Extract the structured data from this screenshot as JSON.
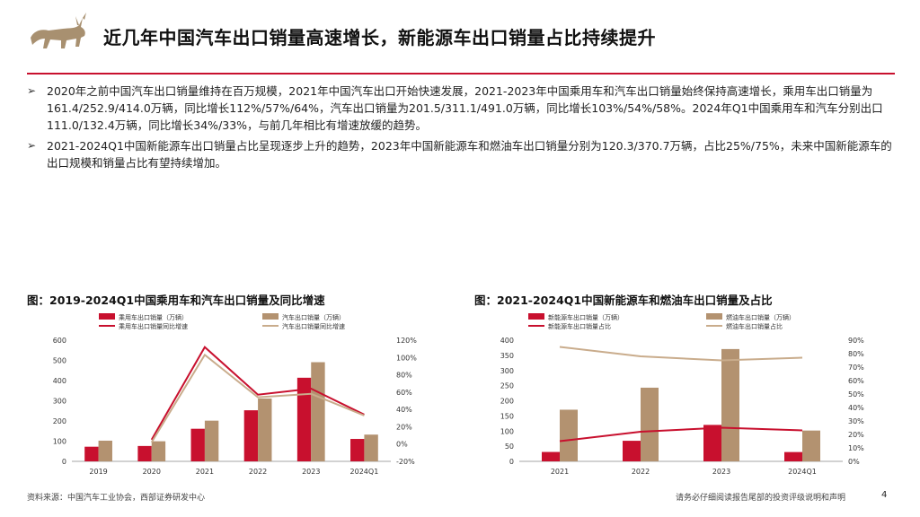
{
  "header": {
    "title": "近几年中国汽车出口销量高速增长，新能源车出口销量占比持续提升",
    "colors": {
      "accent": "#c8102e",
      "logo": "#a89070"
    }
  },
  "bullets": [
    {
      "icon": "arrow-bullet-icon",
      "text": "2020年之前中国汽车出口销量维持在百万规模，2021年中国汽车出口开始快速发展，2021-2023年中国乘用车和汽车出口销量始终保持高速增长，乘用车出口销量为161.4/252.9/414.0万辆，同比增长112%/57%/64%，汽车出口销量为201.5/311.1/491.0万辆，同比增长103%/54%/58%。2024年Q1中国乘用车和汽车分别出口111.0/132.4万辆，同比增长34%/33%，与前几年相比有增速放缓的趋势。"
    },
    {
      "icon": "arrow-bullet-icon",
      "text": "2021-2024Q1中国新能源车出口销量占比呈现逐步上升的趋势，2023年中国新能源车和燃油车出口销量分别为120.3/370.7万辆，占比25%/75%，未来中国新能源车的出口规模和销量占比有望持续增加。"
    }
  ],
  "figures": {
    "left_title": "图：2019-2024Q1中国乘用车和汽车出口销量及同比增速",
    "right_title": "图：2021-2024Q1中国新能源车和燃油车出口销量及占比"
  },
  "chart_data": [
    {
      "type": "bar",
      "title": "图：2019-2024Q1中国乘用车和汽车出口销量及同比增速",
      "categories": [
        "2019",
        "2020",
        "2021",
        "2022",
        "2023",
        "2024Q1"
      ],
      "series": [
        {
          "name": "乘用车出口销量（万辆）",
          "kind": "bar",
          "axis": "left",
          "color": "#c8102e",
          "values": [
            72.5,
            76.1,
            161.4,
            252.9,
            414.0,
            111.0
          ]
        },
        {
          "name": "汽车出口销量（万辆）",
          "kind": "bar",
          "axis": "left",
          "color": "#b39270",
          "values": [
            102.4,
            99.5,
            201.5,
            311.1,
            491.0,
            132.4
          ]
        },
        {
          "name": "乘用车出口销量同比增速",
          "kind": "line",
          "axis": "right",
          "color": "#c8102e",
          "values": [
            null,
            5,
            112,
            57,
            64,
            34
          ]
        },
        {
          "name": "汽车出口销量同比增速",
          "kind": "line",
          "axis": "right",
          "color": "#c9ac8c",
          "values": [
            null,
            2,
            103,
            54,
            58,
            33
          ]
        }
      ],
      "ylim": [
        0,
        600
      ],
      "yticks": [
        "0",
        "100",
        "200",
        "300",
        "400",
        "500",
        "600"
      ],
      "y2lim": [
        -20,
        120
      ],
      "y2ticks": [
        "-20%",
        "0%",
        "20%",
        "40%",
        "60%",
        "80%",
        "100%",
        "120%"
      ],
      "legend": "top"
    },
    {
      "type": "bar",
      "title": "图：2021-2024Q1中国新能源车和燃油车出口销量及占比",
      "categories": [
        "2021",
        "2022",
        "2023",
        "2024Q1"
      ],
      "series": [
        {
          "name": "新能源车出口销量（万辆）",
          "kind": "bar",
          "axis": "left",
          "color": "#c8102e",
          "values": [
            31.0,
            67.9,
            120.3,
            30.7
          ]
        },
        {
          "name": "燃油车出口销量（万辆）",
          "kind": "bar",
          "axis": "left",
          "color": "#b39270",
          "values": [
            170.5,
            243.2,
            370.7,
            101.7
          ]
        },
        {
          "name": "新能源车出口销量占比",
          "kind": "line",
          "axis": "right",
          "color": "#c8102e",
          "values": [
            15,
            22,
            25,
            23
          ]
        },
        {
          "name": "燃油车出口销量占比",
          "kind": "line",
          "axis": "right",
          "color": "#c9ac8c",
          "values": [
            85,
            78,
            75,
            77
          ]
        }
      ],
      "ylim": [
        0,
        400
      ],
      "yticks": [
        "0",
        "50",
        "100",
        "150",
        "200",
        "250",
        "300",
        "350",
        "400"
      ],
      "y2lim": [
        0,
        90
      ],
      "y2ticks": [
        "0%",
        "10%",
        "20%",
        "30%",
        "40%",
        "50%",
        "60%",
        "70%",
        "80%",
        "90%"
      ],
      "legend": "top"
    }
  ],
  "footer": {
    "source": "资料来源：中国汽车工业协会，西部证券研发中心",
    "disclaimer": "请务必仔细阅读报告尾部的投资评级说明和声明",
    "page": "4"
  }
}
